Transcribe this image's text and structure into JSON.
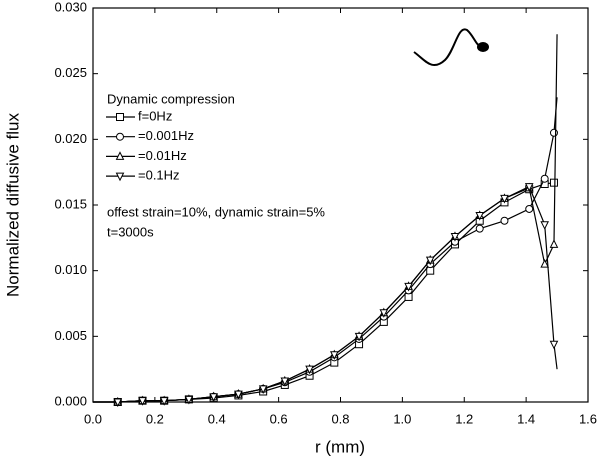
{
  "chart_data": {
    "type": "line",
    "xlabel": "r (mm)",
    "ylabel": "Normalized diffusive flux",
    "legend_title": "Dynamic compression",
    "annotations": [
      "offest strain=10%, dynamic strain=5%",
      "t=3000s"
    ],
    "x": [
      0,
      0.08,
      0.16,
      0.23,
      0.31,
      0.39,
      0.47,
      0.55,
      0.62,
      0.7,
      0.78,
      0.86,
      0.94,
      1.02,
      1.09,
      1.17,
      1.25,
      1.33,
      1.41,
      1.46,
      1.49,
      1.5
    ],
    "series": [
      {
        "name": "f=0Hz",
        "color": "#000000",
        "marker": "square",
        "values": [
          0,
          0,
          0.0001,
          0.0001,
          0.0002,
          0.0003,
          0.0005,
          0.0008,
          0.0013,
          0.002,
          0.003,
          0.0044,
          0.0061,
          0.008,
          0.01,
          0.012,
          0.0138,
          0.0152,
          0.0162,
          0.0166,
          0.0167,
          0.0167
        ]
      },
      {
        "name": "=0.001Hz",
        "color": "#000000",
        "marker": "circle",
        "values": [
          0,
          0,
          0.0001,
          0.0001,
          0.0002,
          0.0004,
          0.0006,
          0.001,
          0.0015,
          0.0023,
          0.0034,
          0.0048,
          0.0065,
          0.0085,
          0.0105,
          0.0122,
          0.0132,
          0.0138,
          0.0147,
          0.017,
          0.0205,
          0.0232
        ]
      },
      {
        "name": "=0.01Hz",
        "color": "#000000",
        "marker": "triangle-up",
        "values": [
          0,
          0,
          0.0001,
          0.0001,
          0.0002,
          0.0004,
          0.0006,
          0.001,
          0.0016,
          0.0025,
          0.0036,
          0.005,
          0.0068,
          0.0088,
          0.0108,
          0.0126,
          0.0142,
          0.0155,
          0.0163,
          0.0105,
          0.012,
          0.028
        ]
      },
      {
        "name": "=0.1Hz",
        "color": "#000000",
        "marker": "triangle-down",
        "values": [
          0,
          0,
          0.0001,
          0.0001,
          0.0002,
          0.0004,
          0.0006,
          0.001,
          0.0016,
          0.0025,
          0.0036,
          0.005,
          0.0068,
          0.0088,
          0.0108,
          0.0126,
          0.0142,
          0.0155,
          0.0164,
          0.0135,
          0.0044,
          0.0025
        ]
      }
    ],
    "xlim": [
      0,
      1.6
    ],
    "xticks": [
      {
        "value": 0,
        "label": "0.0"
      },
      0.2,
      0.4,
      0.6,
      0.8,
      {
        "value": 1,
        "label": "1.0"
      },
      1.2,
      1.4,
      1.6
    ],
    "ylim": [
      0,
      0.03
    ],
    "yticks": [
      {
        "value": 0,
        "label": "0.000"
      },
      0.005,
      {
        "value": 0.01,
        "label": "0.010"
      },
      0.015,
      {
        "value": 0.02,
        "label": "0.020"
      },
      0.025,
      {
        "value": 0.03,
        "label": "0.030"
      }
    ],
    "grid": false
  }
}
